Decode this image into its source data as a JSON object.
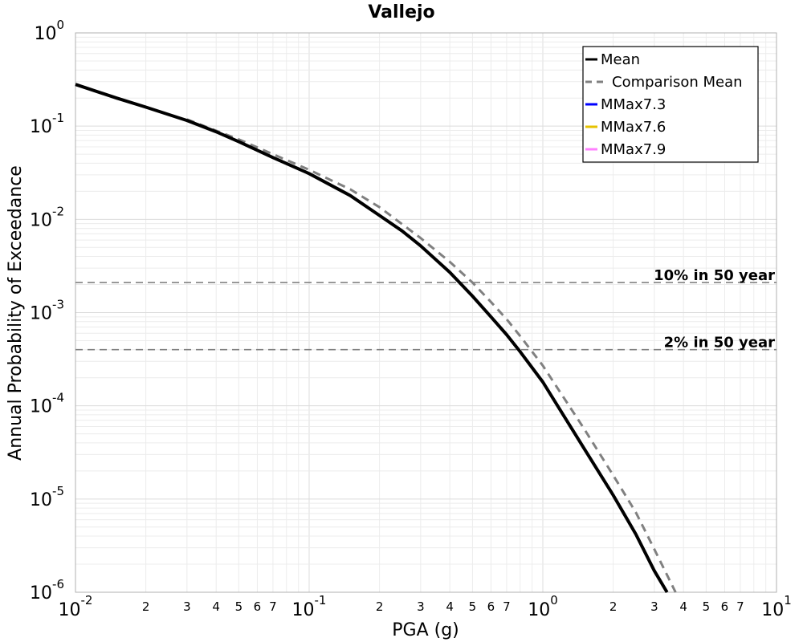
{
  "chart_data": {
    "type": "line",
    "title": "Vallejo",
    "xlabel": "PGA (g)",
    "ylabel": "Annual Probability of Exceedance",
    "xscale": "log",
    "yscale": "log",
    "xlim": [
      0.01,
      10
    ],
    "ylim": [
      1e-06,
      1
    ],
    "grid": true,
    "legend_position": "top-right",
    "x_major_ticks": [
      {
        "base": "10",
        "exp": "-2",
        "value": 0.01
      },
      {
        "base": "10",
        "exp": "-1",
        "value": 0.1
      },
      {
        "base": "10",
        "exp": "0",
        "value": 1
      },
      {
        "base": "10",
        "exp": "1",
        "value": 10
      }
    ],
    "x_minor_labels": [
      {
        "label": "2",
        "value": 0.02
      },
      {
        "label": "3",
        "value": 0.03
      },
      {
        "label": "4",
        "value": 0.04
      },
      {
        "label": "5",
        "value": 0.05
      },
      {
        "label": "6",
        "value": 0.06
      },
      {
        "label": "7",
        "value": 0.07
      },
      {
        "label": "2",
        "value": 0.2
      },
      {
        "label": "3",
        "value": 0.3
      },
      {
        "label": "4",
        "value": 0.4
      },
      {
        "label": "5",
        "value": 0.5
      },
      {
        "label": "6",
        "value": 0.6
      },
      {
        "label": "7",
        "value": 0.7
      },
      {
        "label": "2",
        "value": 2
      },
      {
        "label": "3",
        "value": 3
      },
      {
        "label": "4",
        "value": 4
      },
      {
        "label": "5",
        "value": 5
      },
      {
        "label": "6",
        "value": 6
      },
      {
        "label": "7",
        "value": 7
      }
    ],
    "y_major_ticks": [
      {
        "base": "10",
        "exp": "0",
        "value": 1
      },
      {
        "base": "10",
        "exp": "-1",
        "value": 0.1
      },
      {
        "base": "10",
        "exp": "-2",
        "value": 0.01
      },
      {
        "base": "10",
        "exp": "-3",
        "value": 0.001
      },
      {
        "base": "10",
        "exp": "-4",
        "value": 0.0001
      },
      {
        "base": "10",
        "exp": "-5",
        "value": 1e-05
      },
      {
        "base": "10",
        "exp": "-6",
        "value": 1e-06
      }
    ],
    "series": [
      {
        "name": "Mean",
        "color": "#000000",
        "style": "solid",
        "x": [
          0.01,
          0.015,
          0.02,
          0.03,
          0.04,
          0.05,
          0.07,
          0.1,
          0.15,
          0.2,
          0.25,
          0.3,
          0.4,
          0.5,
          0.6,
          0.7,
          0.8,
          1.0,
          1.5,
          2.0,
          2.5,
          3.0,
          3.4
        ],
        "values": [
          0.28,
          0.2,
          0.16,
          0.115,
          0.087,
          0.068,
          0.046,
          0.031,
          0.018,
          0.011,
          0.0075,
          0.0052,
          0.0027,
          0.0015,
          0.0009,
          0.00058,
          0.00038,
          0.00018,
          3.5e-05,
          1.1e-05,
          4.2e-06,
          1.7e-06,
          1e-06
        ]
      },
      {
        "name": "Comparison Mean",
        "color": "#808080",
        "style": "dashed",
        "x": [
          0.03,
          0.05,
          0.07,
          0.1,
          0.15,
          0.2,
          0.3,
          0.4,
          0.5,
          0.6,
          0.7,
          0.8,
          1.0,
          1.5,
          2.0,
          2.5,
          3.0,
          3.7
        ],
        "values": [
          0.118,
          0.072,
          0.05,
          0.034,
          0.021,
          0.0135,
          0.0063,
          0.0035,
          0.0021,
          0.0013,
          0.00085,
          0.00056,
          0.00027,
          5.7e-05,
          1.8e-05,
          7.2e-06,
          2.9e-06,
          1e-06
        ]
      },
      {
        "name": "MMax7.3",
        "color": "#0000ff",
        "style": "solid",
        "x": [],
        "values": []
      },
      {
        "name": "MMax7.6",
        "color": "#e6c200",
        "style": "solid",
        "x": [],
        "values": []
      },
      {
        "name": "MMax7.9",
        "color": "#ff80ff",
        "style": "solid",
        "x": [],
        "values": []
      }
    ],
    "reference_lines": [
      {
        "label": "10% in 50 year",
        "y": 0.0021,
        "color": "#808080"
      },
      {
        "label": "2% in 50 year",
        "y": 0.0004,
        "color": "#808080"
      }
    ]
  }
}
